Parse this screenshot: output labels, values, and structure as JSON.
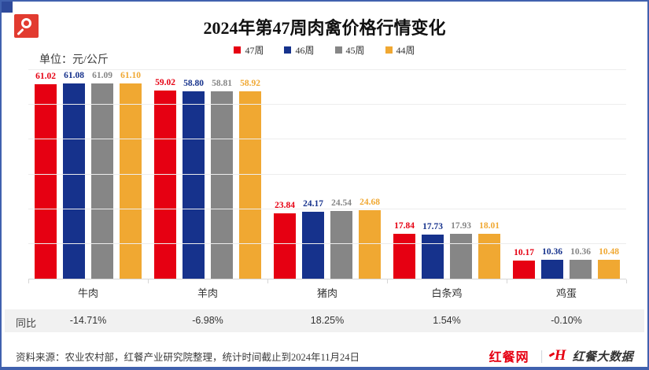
{
  "page": {
    "title": "2024年第47周肉禽价格行情变化",
    "unit_label": "单位：元/公斤"
  },
  "chart_data": {
    "type": "bar",
    "title": "2024年第47周肉禽价格行情变化",
    "ylabel": "元/公斤",
    "categories": [
      "牛肉",
      "羊肉",
      "猪肉",
      "白条鸡",
      "鸡蛋"
    ],
    "series": [
      {
        "name": "47周",
        "color": "#e60012",
        "values": [
          61.02,
          59.02,
          23.84,
          17.84,
          10.17
        ]
      },
      {
        "name": "46周",
        "color": "#16328c",
        "values": [
          61.08,
          58.8,
          24.17,
          17.73,
          10.36
        ]
      },
      {
        "name": "45周",
        "color": "#868686",
        "values": [
          61.09,
          58.81,
          24.54,
          17.93,
          10.36
        ]
      },
      {
        "name": "44周",
        "color": "#f0a832",
        "values": [
          61.1,
          58.92,
          24.68,
          18.01,
          10.48
        ]
      }
    ],
    "ylim": [
      5,
      65
    ],
    "gridline_step": 10,
    "grid": true,
    "legend_position": "top",
    "value_labels_decimals": 2
  },
  "yoy": {
    "label": "同比",
    "values": [
      "-14.71%",
      "-6.98%",
      "18.25%",
      "1.54%",
      "-0.10%"
    ]
  },
  "footer": {
    "source": "资料来源：农业农村部，红餐产业研究院整理，统计时间截止到2024年11月24日",
    "brand_site": "红餐网",
    "brand_divider": "｜",
    "brand_logo": "H",
    "brand_bigdata": "红餐大数据"
  }
}
